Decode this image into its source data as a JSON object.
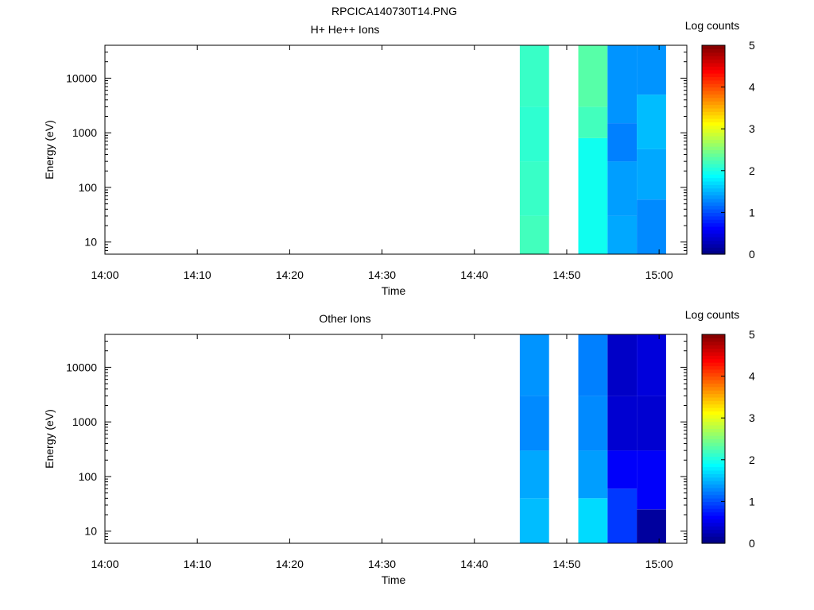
{
  "figure": {
    "title": "RPCICA140730T14.PNG"
  },
  "chart_data": [
    {
      "type": "heatmap",
      "title": "H+ He++ Ions",
      "xlabel": "Time",
      "ylabel": "Energy (eV)",
      "xlim": [
        "14:00",
        "15:03"
      ],
      "ylim": [
        6,
        40000
      ],
      "yscale": "log",
      "x_ticks": [
        "14:00",
        "14:10",
        "14:20",
        "14:30",
        "14:40",
        "14:50",
        "15:00"
      ],
      "y_ticks": [
        "10",
        "100",
        "1000",
        "10000"
      ],
      "colorbar": {
        "label": "Log counts",
        "range": [
          0,
          5
        ],
        "ticks": [
          "0",
          "1",
          "2",
          "3",
          "4",
          "5"
        ]
      },
      "columns": [
        {
          "time_start": "14:44:55",
          "time_end": "14:48:05",
          "cells": [
            {
              "e_lo": 6,
              "e_hi": 30,
              "v": 2.2
            },
            {
              "e_lo": 30,
              "e_hi": 300,
              "v": 2.15
            },
            {
              "e_lo": 300,
              "e_hi": 3000,
              "v": 2.1
            },
            {
              "e_lo": 3000,
              "e_hi": 40000,
              "v": 2.15
            }
          ]
        },
        {
          "time_start": "14:51:15",
          "time_end": "14:54:25",
          "cells": [
            {
              "e_lo": 6,
              "e_hi": 800,
              "v": 1.95
            },
            {
              "e_lo": 800,
              "e_hi": 3000,
              "v": 2.2
            },
            {
              "e_lo": 3000,
              "e_hi": 40000,
              "v": 2.3
            }
          ]
        },
        {
          "time_start": "14:54:25",
          "time_end": "14:57:35",
          "cells": [
            {
              "e_lo": 6,
              "e_hi": 30,
              "v": 1.45
            },
            {
              "e_lo": 30,
              "e_hi": 300,
              "v": 1.4
            },
            {
              "e_lo": 300,
              "e_hi": 1500,
              "v": 1.25
            },
            {
              "e_lo": 1500,
              "e_hi": 40000,
              "v": 1.35
            }
          ]
        },
        {
          "time_start": "14:57:35",
          "time_end": "15:00:45",
          "cells": [
            {
              "e_lo": 6,
              "e_hi": 60,
              "v": 1.3
            },
            {
              "e_lo": 60,
              "e_hi": 500,
              "v": 1.45
            },
            {
              "e_lo": 500,
              "e_hi": 5000,
              "v": 1.55
            },
            {
              "e_lo": 5000,
              "e_hi": 40000,
              "v": 1.35
            }
          ]
        }
      ]
    },
    {
      "type": "heatmap",
      "title": "Other Ions",
      "xlabel": "Time",
      "ylabel": "Energy (eV)",
      "xlim": [
        "14:00",
        "15:03"
      ],
      "ylim": [
        6,
        40000
      ],
      "yscale": "log",
      "x_ticks": [
        "14:00",
        "14:10",
        "14:20",
        "14:30",
        "14:40",
        "14:50",
        "15:00"
      ],
      "y_ticks": [
        "10",
        "100",
        "1000",
        "10000"
      ],
      "colorbar": {
        "label": "Log counts",
        "range": [
          0,
          5
        ],
        "ticks": [
          "0",
          "1",
          "2",
          "3",
          "4",
          "5"
        ]
      },
      "columns": [
        {
          "time_start": "14:44:55",
          "time_end": "14:48:05",
          "cells": [
            {
              "e_lo": 6,
              "e_hi": 40,
              "v": 1.55
            },
            {
              "e_lo": 40,
              "e_hi": 300,
              "v": 1.45
            },
            {
              "e_lo": 300,
              "e_hi": 3000,
              "v": 1.3
            },
            {
              "e_lo": 3000,
              "e_hi": 40000,
              "v": 1.35
            }
          ]
        },
        {
          "time_start": "14:51:15",
          "time_end": "14:54:25",
          "cells": [
            {
              "e_lo": 6,
              "e_hi": 40,
              "v": 1.7
            },
            {
              "e_lo": 40,
              "e_hi": 300,
              "v": 1.4
            },
            {
              "e_lo": 300,
              "e_hi": 3000,
              "v": 1.3
            },
            {
              "e_lo": 3000,
              "e_hi": 40000,
              "v": 1.25
            }
          ]
        },
        {
          "time_start": "14:54:25",
          "time_end": "14:57:35",
          "cells": [
            {
              "e_lo": 6,
              "e_hi": 60,
              "v": 0.9
            },
            {
              "e_lo": 60,
              "e_hi": 300,
              "v": 0.6
            },
            {
              "e_lo": 300,
              "e_hi": 3000,
              "v": 0.4
            },
            {
              "e_lo": 3000,
              "e_hi": 40000,
              "v": 0.35
            }
          ]
        },
        {
          "time_start": "14:57:35",
          "time_end": "15:00:45",
          "cells": [
            {
              "e_lo": 6,
              "e_hi": 25,
              "v": 0.15
            },
            {
              "e_lo": 25,
              "e_hi": 300,
              "v": 0.6
            },
            {
              "e_lo": 300,
              "e_hi": 3000,
              "v": 0.4
            },
            {
              "e_lo": 3000,
              "e_hi": 40000,
              "v": 0.45
            }
          ]
        }
      ]
    }
  ]
}
